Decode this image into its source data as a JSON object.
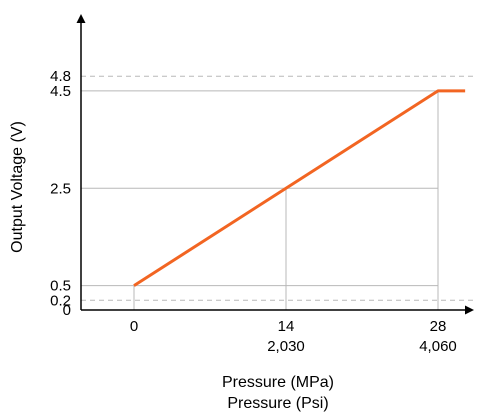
{
  "chart_data": {
    "type": "line",
    "ylabel": "Output Voltage (V)",
    "xlabel": "Pressure (MPa)",
    "xlabel_secondary": "Pressure (Psi)",
    "x_ticks": [
      {
        "value": 0,
        "label": "0",
        "label2": ""
      },
      {
        "value": 14,
        "label": "14",
        "label2": "2,030"
      },
      {
        "value": 28,
        "label": "28",
        "label2": "4,060"
      }
    ],
    "y_ticks": [
      {
        "value": 0,
        "label": "0",
        "style": "none"
      },
      {
        "value": 0.2,
        "label": "0.2",
        "style": "dashed"
      },
      {
        "value": 0.5,
        "label": "0.5",
        "style": "solid"
      },
      {
        "value": 2.5,
        "label": "2.5",
        "style": "solid"
      },
      {
        "value": 4.5,
        "label": "4.5",
        "style": "solid"
      },
      {
        "value": 4.8,
        "label": "4.8",
        "style": "dashed"
      }
    ],
    "x_guides": [
      0,
      14,
      28
    ],
    "xlim": [
      -5.2,
      31.3
    ],
    "ylim": [
      0,
      5.25
    ],
    "series": [
      {
        "color": "#f26522",
        "points": [
          [
            0,
            0.5
          ],
          [
            14,
            2.5
          ],
          [
            28,
            4.5
          ],
          [
            30.5,
            4.5
          ]
        ]
      }
    ],
    "grid": false,
    "legend": "none"
  }
}
